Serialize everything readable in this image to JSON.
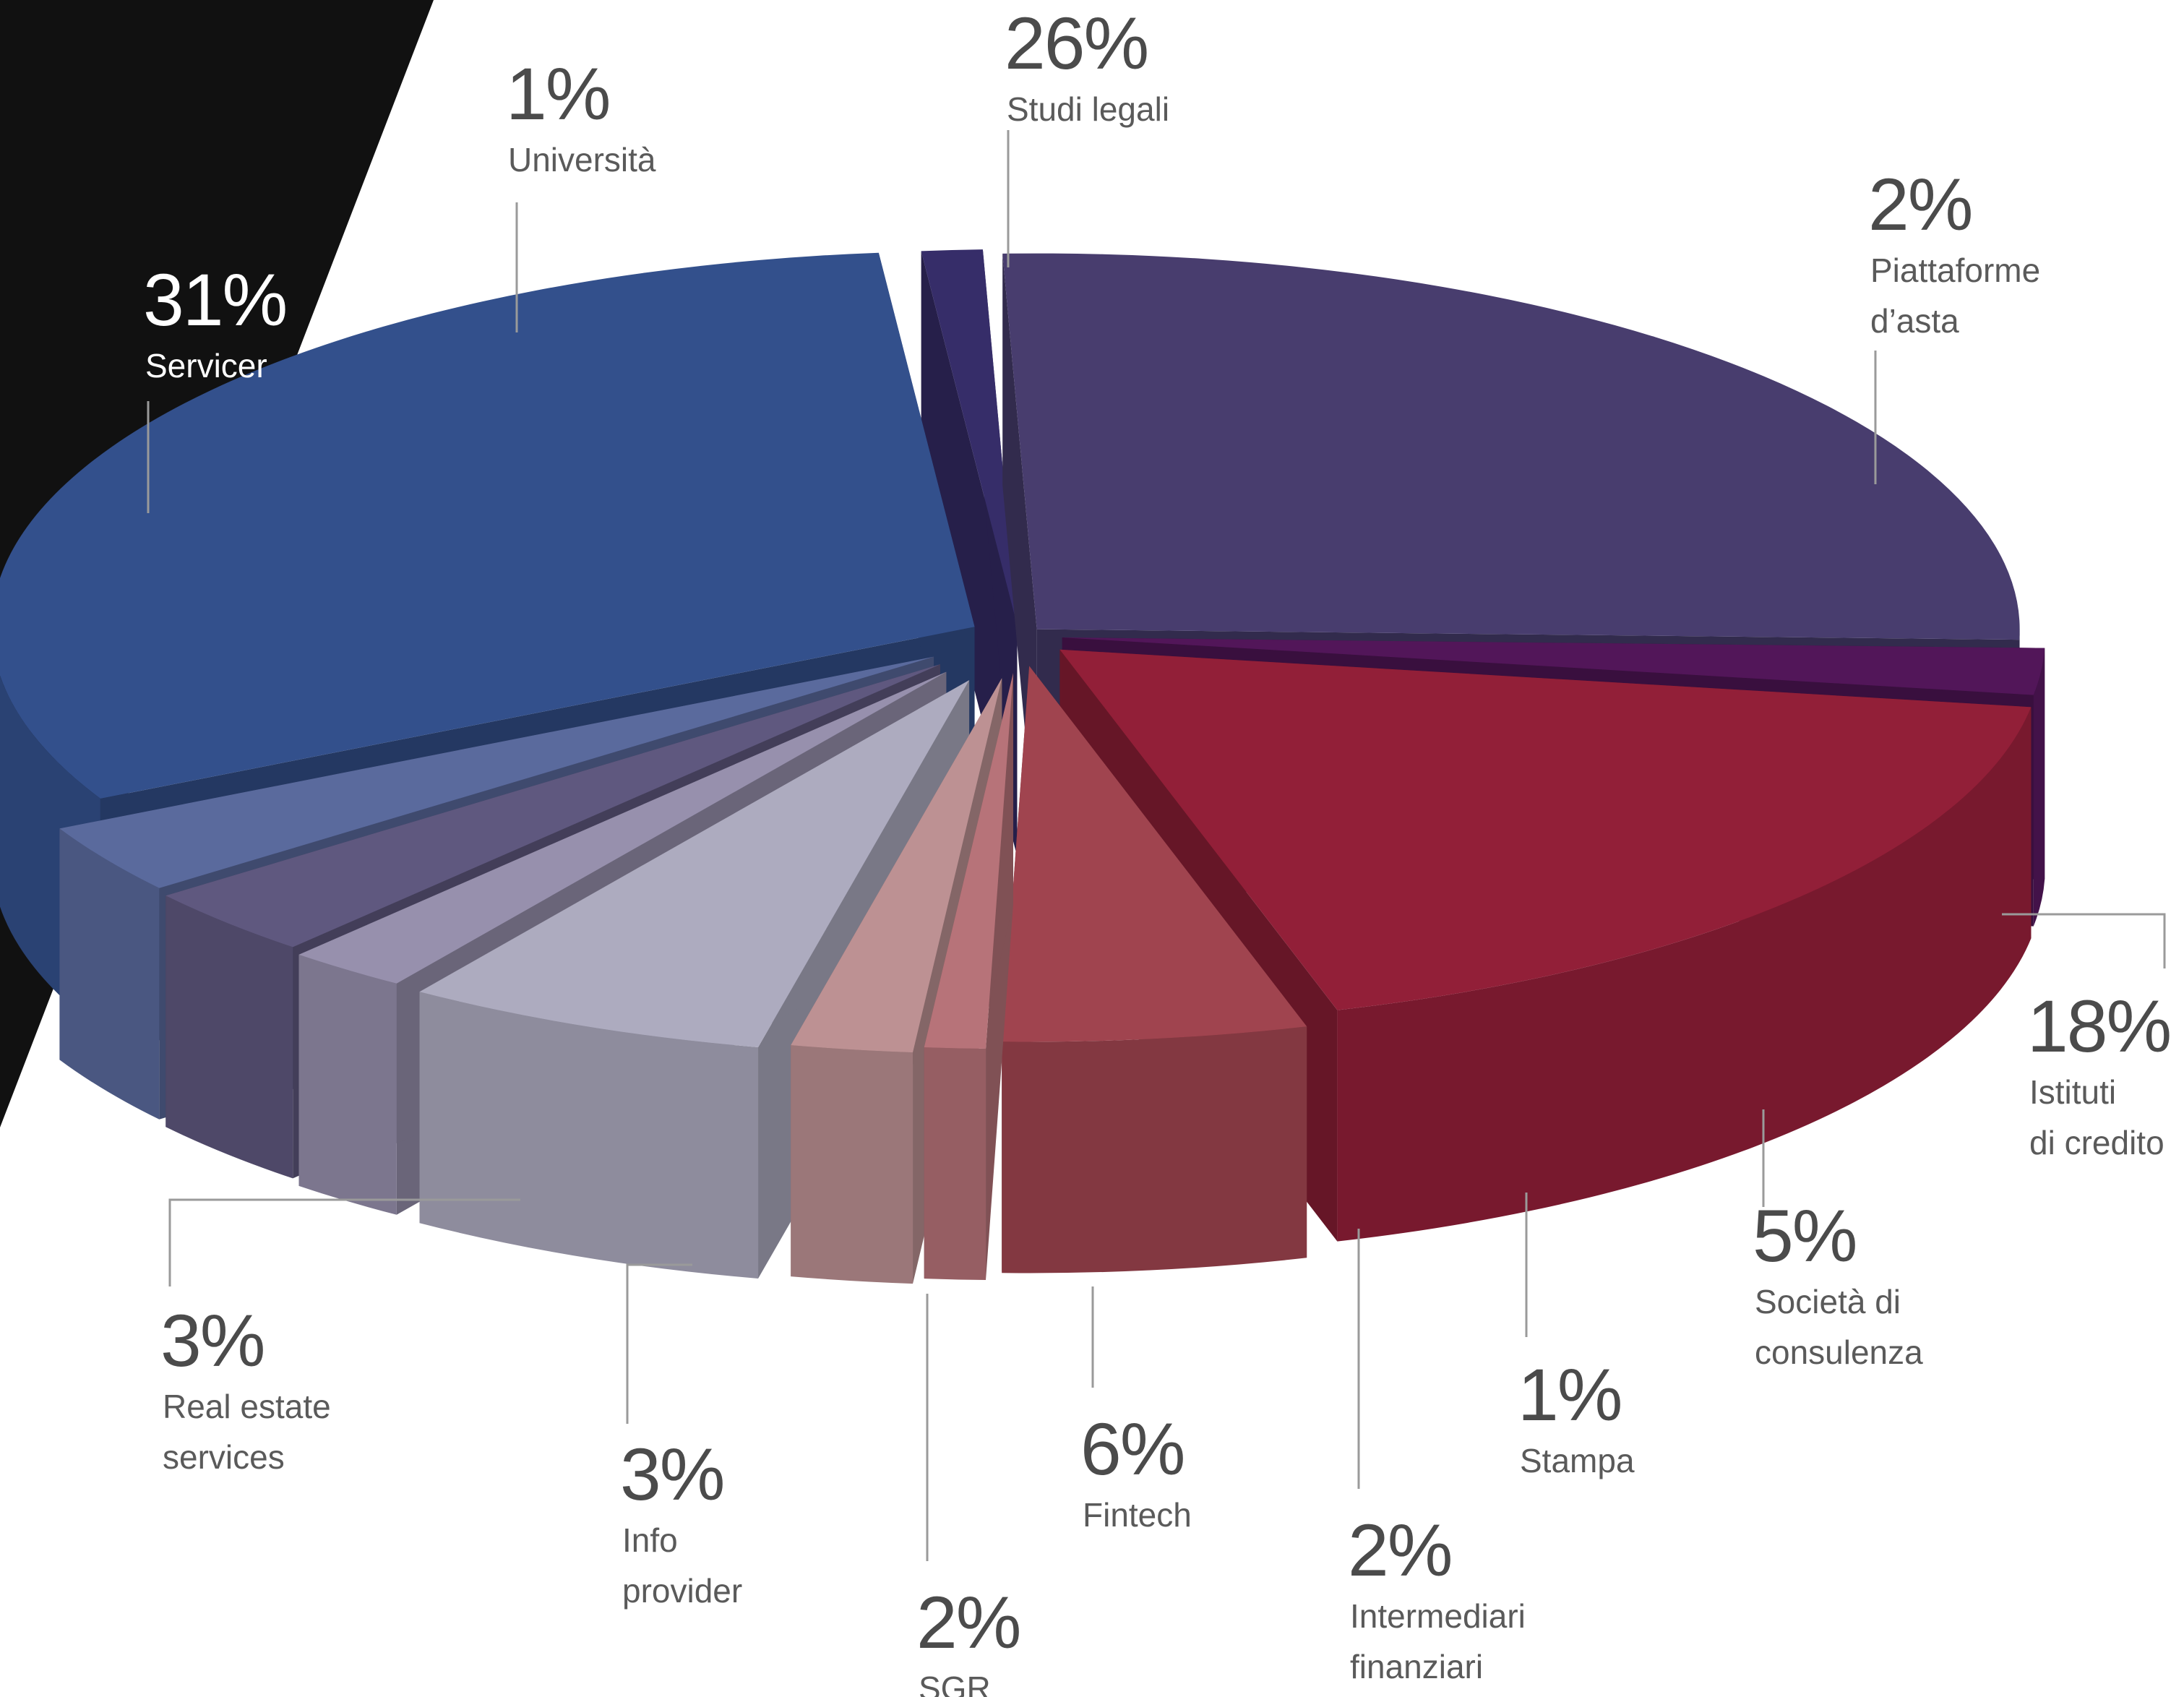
{
  "chart_data": {
    "type": "pie",
    "style": "3d-exploded",
    "slices": [
      {
        "label": "Studi legali",
        "label_lines": [
          "Studi legali"
        ],
        "value": 26,
        "value_label": "26%",
        "color": "#483d6e"
      },
      {
        "label": "Piattaforme d’asta",
        "label_lines": [
          "Piattaforme",
          "d’asta"
        ],
        "value": 2,
        "value_label": "2%",
        "color": "#521659"
      },
      {
        "label": "Istituti di credito",
        "label_lines": [
          "Istituti",
          "di credito"
        ],
        "value": 18,
        "value_label": "18%",
        "color": "#921f38"
      },
      {
        "label": "Società di consulenza",
        "label_lines": [
          "Società di",
          "consulenza"
        ],
        "value": 5,
        "value_label": "5%",
        "color": "#a0444f"
      },
      {
        "label": "Stampa",
        "label_lines": [
          "Stampa"
        ],
        "value": 1,
        "value_label": "1%",
        "color": "#b77379"
      },
      {
        "label": "Intermediari finanziari",
        "label_lines": [
          "Intermediari",
          "finanziari"
        ],
        "value": 2,
        "value_label": "2%",
        "color": "#bd9193"
      },
      {
        "label": "Fintech",
        "label_lines": [
          "Fintech"
        ],
        "value": 6,
        "value_label": "6%",
        "color": "#adabbf"
      },
      {
        "label": "SGR",
        "label_lines": [
          "SGR"
        ],
        "value": 2,
        "value_label": "2%",
        "color": "#9790ad"
      },
      {
        "label": "Info provider",
        "label_lines": [
          "Info",
          "provider"
        ],
        "value": 3,
        "value_label": "3%",
        "color": "#5f587f"
      },
      {
        "label": "Real estate services",
        "label_lines": [
          "Real estate",
          "services"
        ],
        "value": 3,
        "value_label": "3%",
        "color": "#5a6a9d"
      },
      {
        "label": "Servicer",
        "label_lines": [
          "Servicer"
        ],
        "value": 31,
        "value_label": "31%",
        "color": "#33508c"
      },
      {
        "label": "Università",
        "label_lines": [
          "Università"
        ],
        "value": 1,
        "value_label": "1%",
        "color": "#362d69"
      }
    ],
    "legend": "none",
    "data_labels": "outside, with leader lines"
  },
  "background": {
    "wedge_color": "#111111",
    "page_color": "#ffffff"
  }
}
